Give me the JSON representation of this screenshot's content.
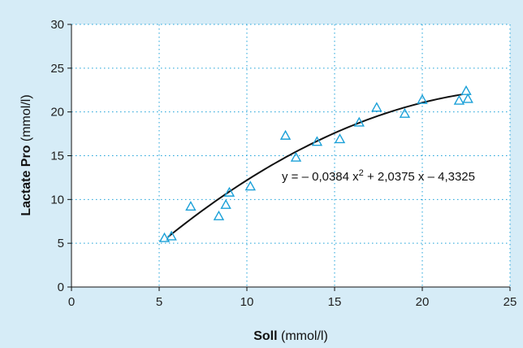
{
  "chart_data": {
    "type": "scatter",
    "title": "",
    "xlabel": {
      "bold": "Soll",
      "unit": " (mmol/l)"
    },
    "ylabel": {
      "bold": "Lactate Pro",
      "unit": " (mmol/l)"
    },
    "xlim": [
      0,
      25
    ],
    "ylim": [
      0,
      30
    ],
    "x_ticks": [
      0,
      5,
      10,
      15,
      20,
      25
    ],
    "y_ticks": [
      0,
      5,
      10,
      15,
      20,
      25,
      30
    ],
    "grid": true,
    "marker_color": "#1aa0d8",
    "background_color": "#d6ecf7",
    "plot_background": "#ffffff",
    "points": [
      {
        "x": 5.3,
        "y": 5.6
      },
      {
        "x": 5.7,
        "y": 5.8
      },
      {
        "x": 6.8,
        "y": 9.2
      },
      {
        "x": 8.4,
        "y": 8.1
      },
      {
        "x": 8.8,
        "y": 9.4
      },
      {
        "x": 9.0,
        "y": 10.8
      },
      {
        "x": 10.2,
        "y": 11.5
      },
      {
        "x": 12.2,
        "y": 17.3
      },
      {
        "x": 12.8,
        "y": 14.8
      },
      {
        "x": 14.0,
        "y": 16.6
      },
      {
        "x": 15.3,
        "y": 16.9
      },
      {
        "x": 16.4,
        "y": 18.8
      },
      {
        "x": 17.4,
        "y": 20.5
      },
      {
        "x": 19.0,
        "y": 19.8
      },
      {
        "x": 20.0,
        "y": 21.4
      },
      {
        "x": 22.1,
        "y": 21.3
      },
      {
        "x": 22.5,
        "y": 22.4
      },
      {
        "x": 22.6,
        "y": 21.5
      }
    ],
    "fit": {
      "type": "polynomial",
      "coefficients": {
        "a": -0.0384,
        "b": 2.0375,
        "c": -4.3325
      },
      "x_range": [
        5.5,
        22.3
      ]
    },
    "annotation": {
      "prefix": "y = – 0,0384 x",
      "sup": "2",
      "suffix": " + 2,0375 x – 4,3325"
    }
  }
}
